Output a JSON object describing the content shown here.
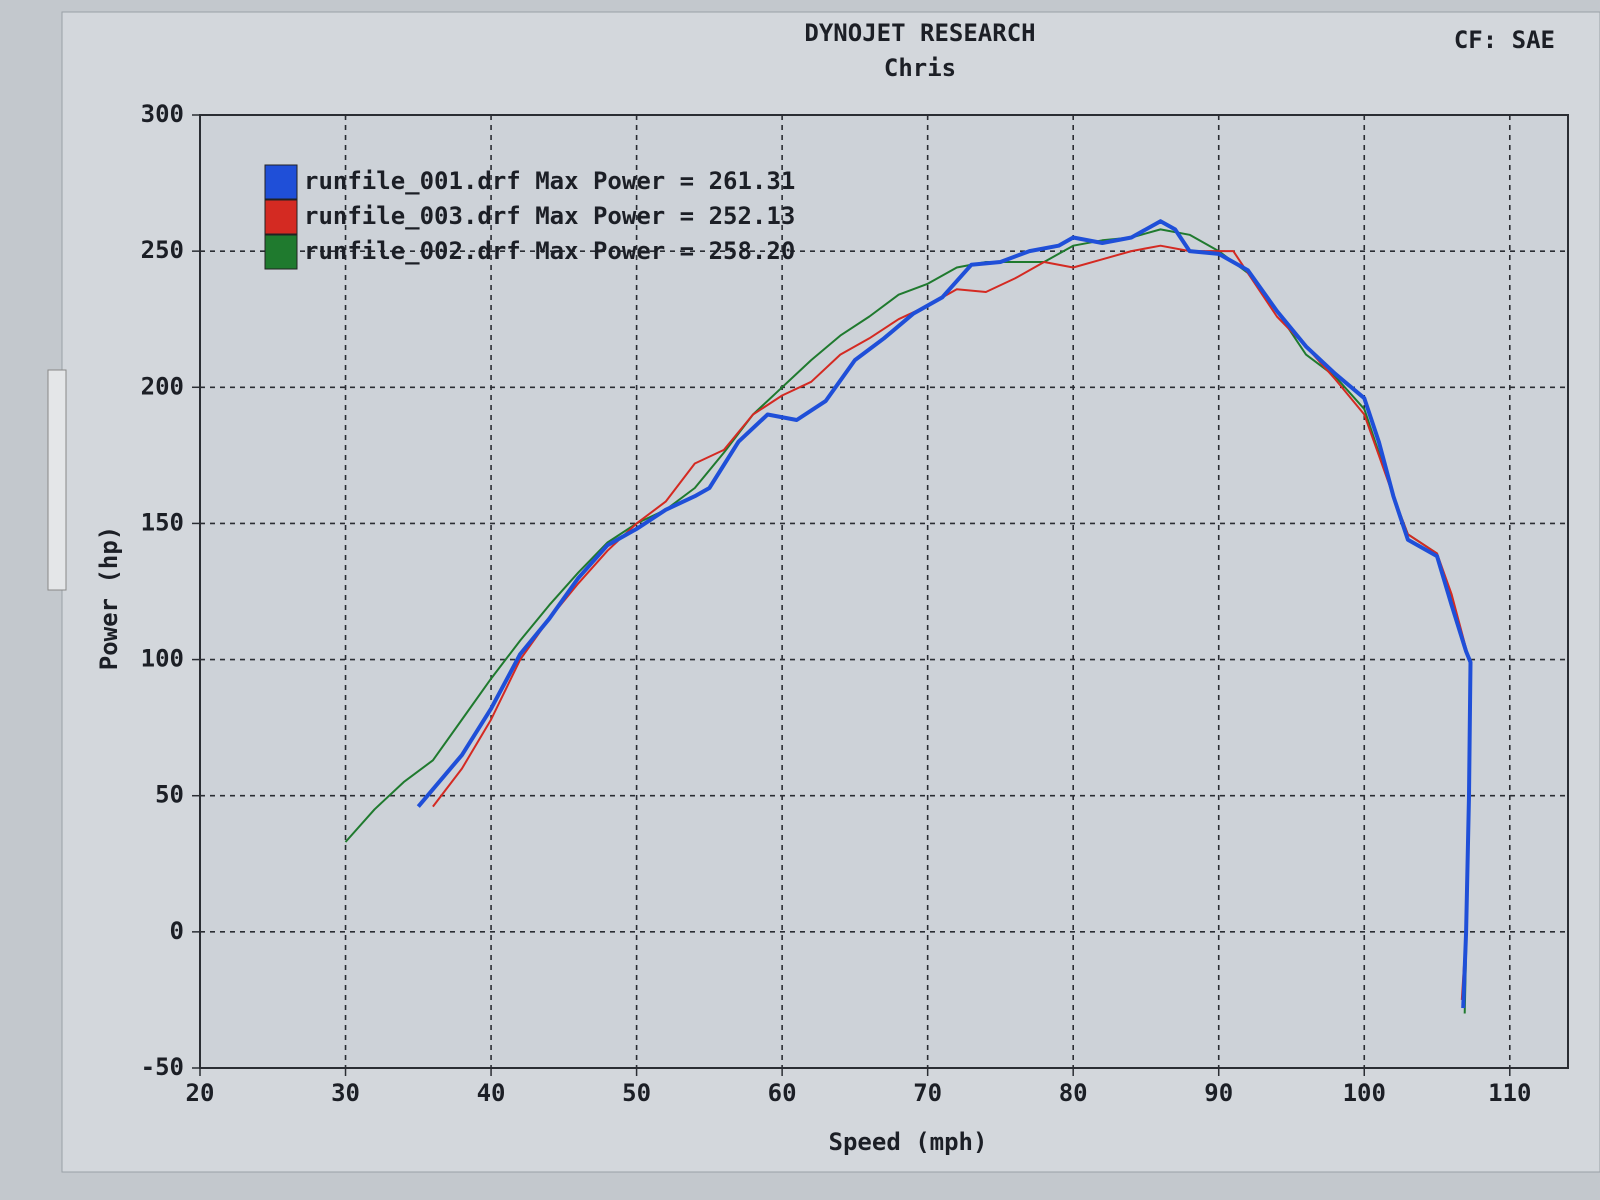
{
  "chart_data": {
    "type": "line",
    "title": "DYNOJET RESEARCH",
    "subtitle": "Chris",
    "annotation": "CF: SAE",
    "x_label": "Speed (mph)",
    "y_label": "Power (hp)",
    "xlim": [
      20,
      114
    ],
    "xticks": [
      20,
      30,
      40,
      50,
      60,
      70,
      80,
      90,
      100,
      110
    ],
    "ylim": [
      -50,
      300
    ],
    "yticks": [
      -50,
      0,
      50,
      100,
      150,
      200,
      250,
      300
    ],
    "grid": true,
    "legend": "upper left",
    "series": [
      {
        "name": "runfile_001.drf Max Power = 261.31",
        "color": "#1f4fd8",
        "x": [
          35,
          38,
          40,
          42,
          44,
          46,
          48,
          50,
          52,
          54,
          55,
          57,
          59,
          61,
          63,
          65,
          67,
          69,
          71,
          73,
          75,
          77,
          79,
          80,
          82,
          84,
          86,
          87,
          88,
          90,
          92,
          94,
          96,
          98,
          100,
          101,
          102,
          103,
          105,
          106,
          107,
          107.3,
          107.2,
          107,
          106.8
        ],
        "values": [
          46,
          65,
          82,
          102,
          115,
          130,
          142,
          148,
          155,
          160,
          163,
          180,
          190,
          188,
          195,
          210,
          218,
          227,
          233,
          245,
          246,
          250,
          252,
          255,
          253,
          255,
          261,
          258,
          250,
          249,
          243,
          228,
          215,
          205,
          196,
          180,
          160,
          144,
          138,
          120,
          103,
          99,
          50,
          0,
          -28
        ]
      },
      {
        "name": "runfile_003.drf Max Power = 252.13",
        "color": "#d42a22",
        "x": [
          36,
          38,
          40,
          42,
          44,
          46,
          48,
          50,
          52,
          54,
          56,
          58,
          60,
          62,
          64,
          66,
          68,
          70,
          72,
          74,
          76,
          78,
          80,
          82,
          84,
          86,
          88,
          91,
          92,
          94,
          96,
          98,
          100,
          102,
          103,
          105,
          106,
          107,
          107.3,
          107.2,
          107,
          106.7
        ],
        "values": [
          46,
          60,
          78,
          100,
          115,
          128,
          140,
          150,
          158,
          172,
          177,
          190,
          197,
          202,
          212,
          218,
          225,
          230,
          236,
          235,
          240,
          246,
          244,
          247,
          250,
          252,
          250,
          250,
          242,
          226,
          215,
          203,
          190,
          160,
          146,
          139,
          124,
          104,
          98,
          50,
          0,
          -25
        ]
      },
      {
        "name": "runfile_002.drf Max Power = 258.20",
        "color": "#1f7a2e",
        "x": [
          30,
          32,
          34,
          36,
          38,
          40,
          42,
          44,
          46,
          48,
          50,
          52,
          54,
          56,
          58,
          60,
          62,
          64,
          66,
          68,
          70,
          72,
          74,
          76,
          78,
          80,
          82,
          84,
          86,
          88,
          90,
          92,
          94,
          96,
          98,
          100,
          102,
          103,
          105,
          106,
          107,
          107.3,
          107.2,
          106.9
        ],
        "values": [
          33,
          45,
          55,
          63,
          78,
          93,
          107,
          120,
          132,
          143,
          150,
          155,
          163,
          176,
          190,
          200,
          210,
          219,
          226,
          234,
          238,
          244,
          246,
          246,
          246,
          252,
          254,
          255,
          258,
          256,
          250,
          242,
          228,
          212,
          204,
          192,
          160,
          146,
          139,
          122,
          104,
          98,
          40,
          -30
        ]
      }
    ]
  }
}
